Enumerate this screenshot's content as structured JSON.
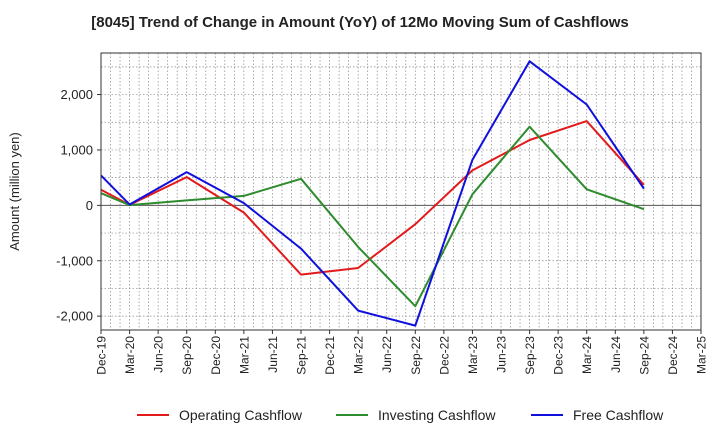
{
  "chart_data": {
    "type": "line",
    "title": "[8045]  Trend of Change in Amount (YoY) of 12Mo Moving Sum of Cashflows",
    "xlabel": "",
    "ylabel": "Amount (million yen)",
    "ylim": [
      -2250,
      2750
    ],
    "yticks": [
      -2000,
      -1000,
      0,
      1000,
      2000
    ],
    "ytick_labels": [
      "-2,000",
      "-1,000",
      "0",
      "1,000",
      "2,000"
    ],
    "categories": [
      "Dec-19",
      "Mar-20",
      "Jun-20",
      "Sep-20",
      "Dec-20",
      "Mar-21",
      "Jun-21",
      "Sep-21",
      "Dec-21",
      "Mar-22",
      "Jun-22",
      "Sep-22",
      "Dec-22",
      "Mar-23",
      "Jun-23",
      "Sep-23",
      "Dec-23",
      "Mar-24",
      "Jun-24",
      "Sep-24",
      "Dec-24",
      "Mar-25"
    ],
    "grid": true,
    "legend_position": "bottom",
    "series": [
      {
        "name": "Operating Cashflow",
        "color": "#e31a1c",
        "values": [
          280,
          10,
          null,
          510,
          null,
          -130,
          null,
          -1250,
          null,
          -1130,
          null,
          -340,
          null,
          630,
          null,
          1180,
          null,
          1520,
          null,
          370,
          null,
          null
        ]
      },
      {
        "name": "Investing Cashflow",
        "color": "#2e8b2e",
        "values": [
          220,
          5,
          null,
          90,
          null,
          170,
          null,
          480,
          null,
          -750,
          null,
          -1820,
          null,
          200,
          null,
          1420,
          null,
          290,
          null,
          -70,
          null,
          null
        ]
      },
      {
        "name": "Free Cashflow",
        "color": "#1010dd",
        "values": [
          540,
          15,
          null,
          600,
          null,
          40,
          null,
          -780,
          null,
          -1900,
          null,
          -2170,
          null,
          820,
          null,
          2600,
          null,
          1820,
          null,
          300,
          null,
          null
        ]
      }
    ]
  }
}
